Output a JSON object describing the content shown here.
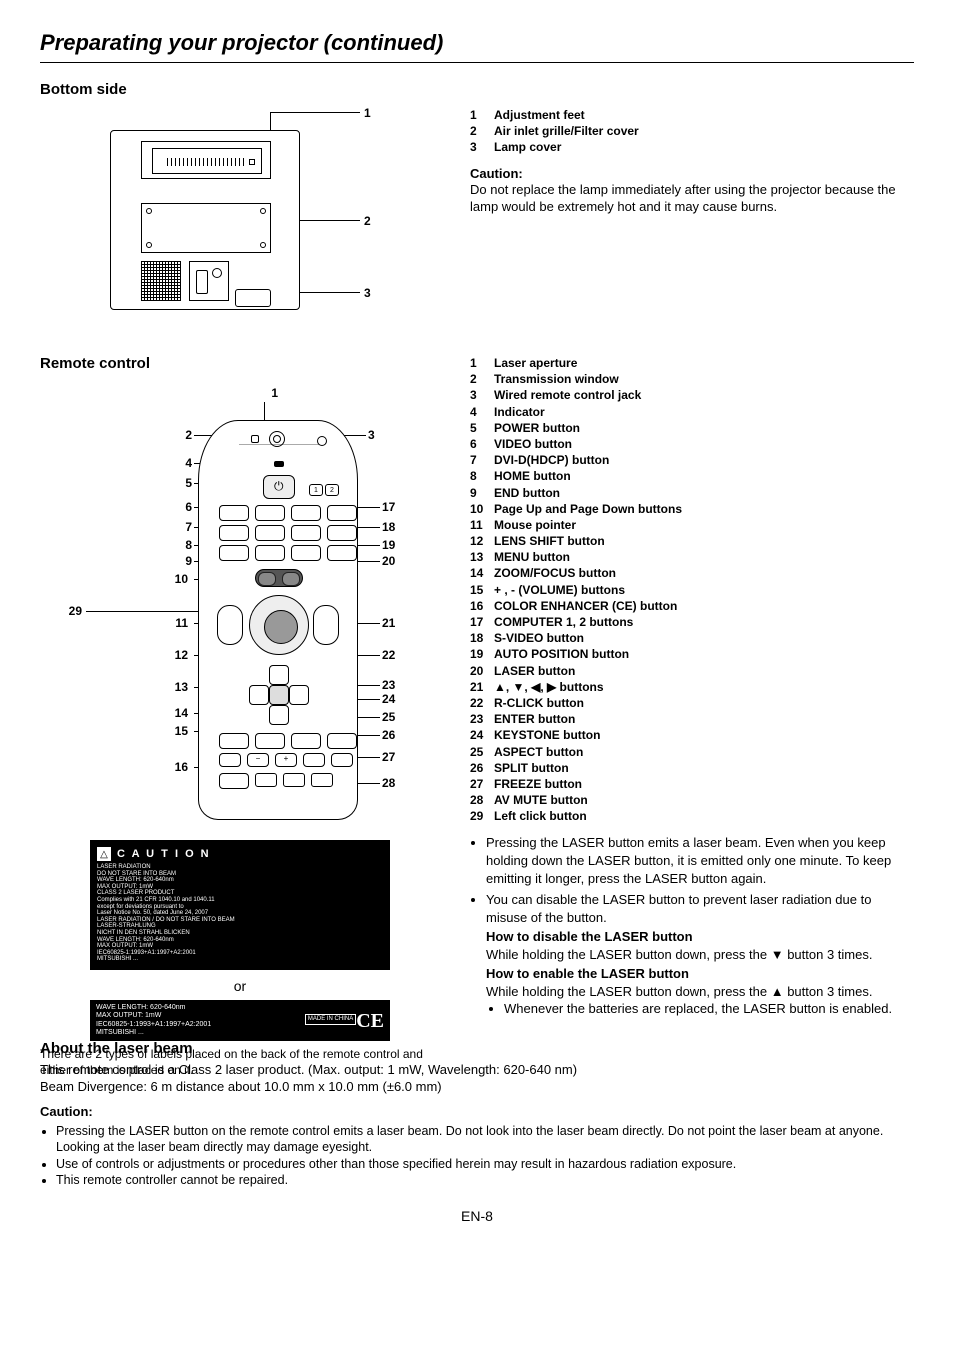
{
  "page": {
    "title": "Preparating your projector (continued)",
    "number": "EN-8"
  },
  "bottom_side": {
    "heading": "Bottom side",
    "legend": [
      {
        "num": "1",
        "label": "Adjustment feet"
      },
      {
        "num": "2",
        "label": "Air inlet grille/Filter cover"
      },
      {
        "num": "3",
        "label": "Lamp cover"
      }
    ],
    "caution_heading": "Caution:",
    "caution_body": "Do not replace the lamp immediately after using the projector because the lamp would be extremely hot and it may cause burns."
  },
  "remote": {
    "heading": "Remote control",
    "legend": [
      {
        "num": "1",
        "label": "Laser aperture"
      },
      {
        "num": "2",
        "label": "Transmission window"
      },
      {
        "num": "3",
        "label": "Wired remote control jack"
      },
      {
        "num": "4",
        "label": "Indicator"
      },
      {
        "num": "5",
        "label": "POWER button"
      },
      {
        "num": "6",
        "label": "VIDEO button"
      },
      {
        "num": "7",
        "label": "DVI-D(HDCP) button"
      },
      {
        "num": "8",
        "label": "HOME button"
      },
      {
        "num": "9",
        "label": "END button"
      },
      {
        "num": "10",
        "label": "Page Up and Page Down buttons"
      },
      {
        "num": "11",
        "label": "Mouse pointer"
      },
      {
        "num": "12",
        "label": "LENS SHIFT button"
      },
      {
        "num": "13",
        "label": "MENU button"
      },
      {
        "num": "14",
        "label": "ZOOM/FOCUS button"
      },
      {
        "num": "15",
        "label": "+ , - (VOLUME) buttons"
      },
      {
        "num": "16",
        "label": "COLOR ENHANCER (CE) button"
      },
      {
        "num": "17",
        "label": "COMPUTER 1, 2 buttons"
      },
      {
        "num": "18",
        "label": "S-VIDEO button"
      },
      {
        "num": "19",
        "label": "AUTO POSITION button"
      },
      {
        "num": "20",
        "label": "LASER button"
      },
      {
        "num": "21",
        "label": "▲, ▼, ◀, ▶ buttons"
      },
      {
        "num": "22",
        "label": "R-CLICK button"
      },
      {
        "num": "23",
        "label": "ENTER button"
      },
      {
        "num": "24",
        "label": "KEYSTONE button"
      },
      {
        "num": "25",
        "label": "ASPECT button"
      },
      {
        "num": "26",
        "label": "SPLIT button"
      },
      {
        "num": "27",
        "label": "FREEZE button"
      },
      {
        "num": "28",
        "label": "AV MUTE button"
      },
      {
        "num": "29",
        "label": "Left click button"
      }
    ],
    "bullets": [
      "Pressing the LASER button emits a laser beam. Even when you keep holding down the LASER button, it is emitted only one minute. To keep emitting it longer, press the LASER button again.",
      "You can disable the LASER button to prevent laser radiation due to misuse of the button."
    ],
    "disable": {
      "heading": "How to disable the LASER button",
      "body": "While holding the LASER button down, press the ▼ button 3 times."
    },
    "enable": {
      "heading": "How to enable the LASER button",
      "body": "While holding the LASER button down, press the ▲ button 3 times.",
      "sub_bullet": "Whenever the batteries are replaced, the LASER button is enabled."
    },
    "label_or": "or",
    "label_note": "There are 2 types of labels placed on the back of the remote control and either of them is placed on it.",
    "caution_label": {
      "title": "C A U T I O N",
      "lines": "LASER RADIATION\nDO NOT STARE INTO BEAM\nWAVE LENGTH: 620-640nm\nMAX OUTPUT: 1mW\nCLASS 2 LASER PRODUCT\nComplies with 21 CFR 1040.10 and 1040.11\nexcept for deviations pursuant to\nLaser Notice No. 50, dated June 24, 2007\nLASER RADIATION / DO NOT STARE INTO BEAM\nLASER-STRAHLUNG\nNICHT IN DEN STRAHL BLICKEN\nWAVE LENGTH: 620-640nm\nMAX OUTPUT: 1mW\nIEC60825-1:1993+A1:1997+A2:2001\nMITSUBISHI ..."
    },
    "caution_label2": {
      "left": "WAVE LENGTH: 620-640nm\nMAX OUTPUT: 1mW\nIEC60825-1:1993+A1:1997+A2:2001\nMITSUBISHI ...",
      "right": "MADE IN CHINA"
    }
  },
  "about_laser": {
    "heading": "About the laser beam",
    "body1": "This remote control is a Class 2 laser product. (Max. output: 1 mW, Wavelength: 620-640 nm)",
    "body2": "Beam Divergence: 6 m distance about 10.0 mm x 10.0 mm (±6.0 mm)",
    "caution_heading": "Caution:",
    "bullets": [
      "Pressing the LASER button on the remote control emits a laser beam. Do not look into the laser beam directly. Do not point the laser beam at anyone. Looking at the laser beam directly may damage eyesight.",
      "Use of controls or adjustments or procedures other than those specified herein may result in hazardous radiation exposure.",
      "This remote controller cannot be repaired."
    ]
  }
}
